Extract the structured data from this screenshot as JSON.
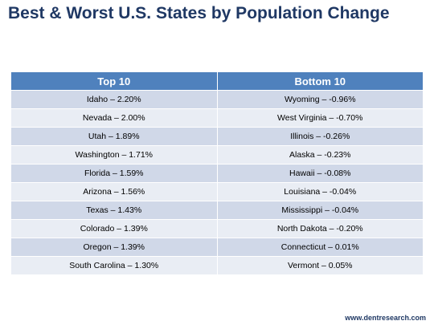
{
  "title": "Best & Worst U.S. States by Population Change",
  "footer": "www.dentresearch.com",
  "chart_data": {
    "type": "table",
    "columns": [
      "Top 10",
      "Bottom 10"
    ],
    "rows": [
      [
        "Idaho – 2.20%",
        "Wyoming – -0.96%"
      ],
      [
        "Nevada – 2.00%",
        "West Virginia – -0.70%"
      ],
      [
        "Utah – 1.89%",
        "Illinois – -0.26%"
      ],
      [
        "Washington – 1.71%",
        "Alaska – -0.23%"
      ],
      [
        "Florida – 1.59%",
        "Hawaii – -0.08%"
      ],
      [
        "Arizona – 1.56%",
        "Louisiana – -0.04%"
      ],
      [
        "Texas – 1.43%",
        "Mississippi – -0.04%"
      ],
      [
        "Colorado – 1.39%",
        "North Dakota – -0.20%"
      ],
      [
        "Oregon – 1.39%",
        "Connecticut – 0.01%"
      ],
      [
        "South Carolina – 1.30%",
        "Vermont – 0.05%"
      ]
    ]
  }
}
